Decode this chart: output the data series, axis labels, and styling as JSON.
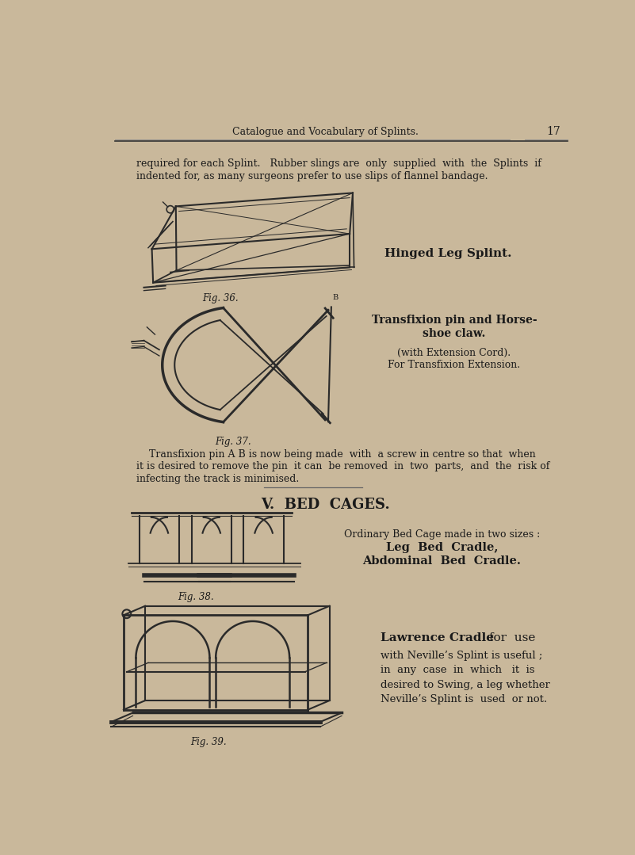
{
  "bg_color": "#c9b89b",
  "text_color": "#1a1a1a",
  "header_text": "Catalogue and Vocabulary of Splints.",
  "header_page_num": "17",
  "para1": "required for each Splint.   Rubber slings are  only  supplied  with  the  Splints  if",
  "para1b": "indented for, as many surgeons prefer to use slips of flannel bandage.",
  "label_fig36": "Fig. 36.",
  "label_hinged": "Hinged Leg Splint.",
  "label_fig37": "Fig. 37.",
  "label_transfixion_bold": "Transfixion pin and Horse-",
  "label_transfixion_bold2": "shoe claw.",
  "label_extension": "(with Extension Cord).",
  "label_for_trans": "For Transfixion Extension.",
  "para2": "    Transfixion pin A B is now being made  with  a screw in centre so that  when",
  "para2b": "it is desired to remove the pin  it can  be removed  in  two  parts,  and  the  risk of",
  "para2c": "infecting the track is minimised.",
  "section_v": "V.  BED  CAGES.",
  "label_fig38": "Fig. 38.",
  "label_ordinary": "Ordinary Bed Cage made in two sizes :",
  "label_leg": "Leg  Bed  Cradle,",
  "label_abdominal": "Abdominal  Bed  Cradle.",
  "label_fig39": "Fig. 39.",
  "label_lawrence_bold": "Lawrence Cradle",
  "label_lawrence_rest": " for  use",
  "label_lawrence2": "with Neville’s Splint is useful ;",
  "label_lawrence3": "in  any  case  in  which   it  is",
  "label_lawrence4": "desired to Swing, a leg whether",
  "label_lawrence5": "Neville’s Splint is  used  or not."
}
